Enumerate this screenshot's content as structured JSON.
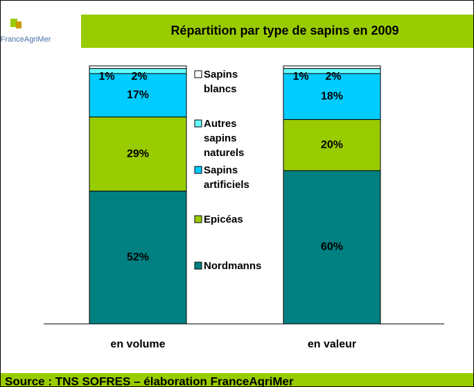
{
  "header": {
    "logo": "FranceAgriMer"
  },
  "footer": {
    "source": "Source : TNS SOFRES – élaboration FranceAgriMer"
  },
  "chart_data": {
    "type": "bar",
    "stacked": true,
    "title": "Répartition par type de sapins en 2009",
    "categories": [
      "en volume",
      "en valeur"
    ],
    "series": [
      {
        "name": "Nordmanns",
        "color": "#008080",
        "values": [
          52,
          60
        ],
        "value_labels": [
          "52%",
          "60%"
        ]
      },
      {
        "name": "Epicéas",
        "color": "#99cc00",
        "values": [
          29,
          20
        ],
        "value_labels": [
          "29%",
          "20%"
        ]
      },
      {
        "name": "Sapins artificiels",
        "color": "#00ccff",
        "values": [
          17,
          18
        ],
        "value_labels": [
          "17%",
          "18%"
        ]
      },
      {
        "name": "Autres sapins naturels",
        "color": "#66ffff",
        "values": [
          2,
          2
        ],
        "value_labels": [
          "2%",
          "2%"
        ]
      },
      {
        "name": "Sapins blancs",
        "color": "#ffffff",
        "values": [
          1,
          1
        ],
        "value_labels": [
          "1%",
          "1%"
        ]
      }
    ]
  }
}
